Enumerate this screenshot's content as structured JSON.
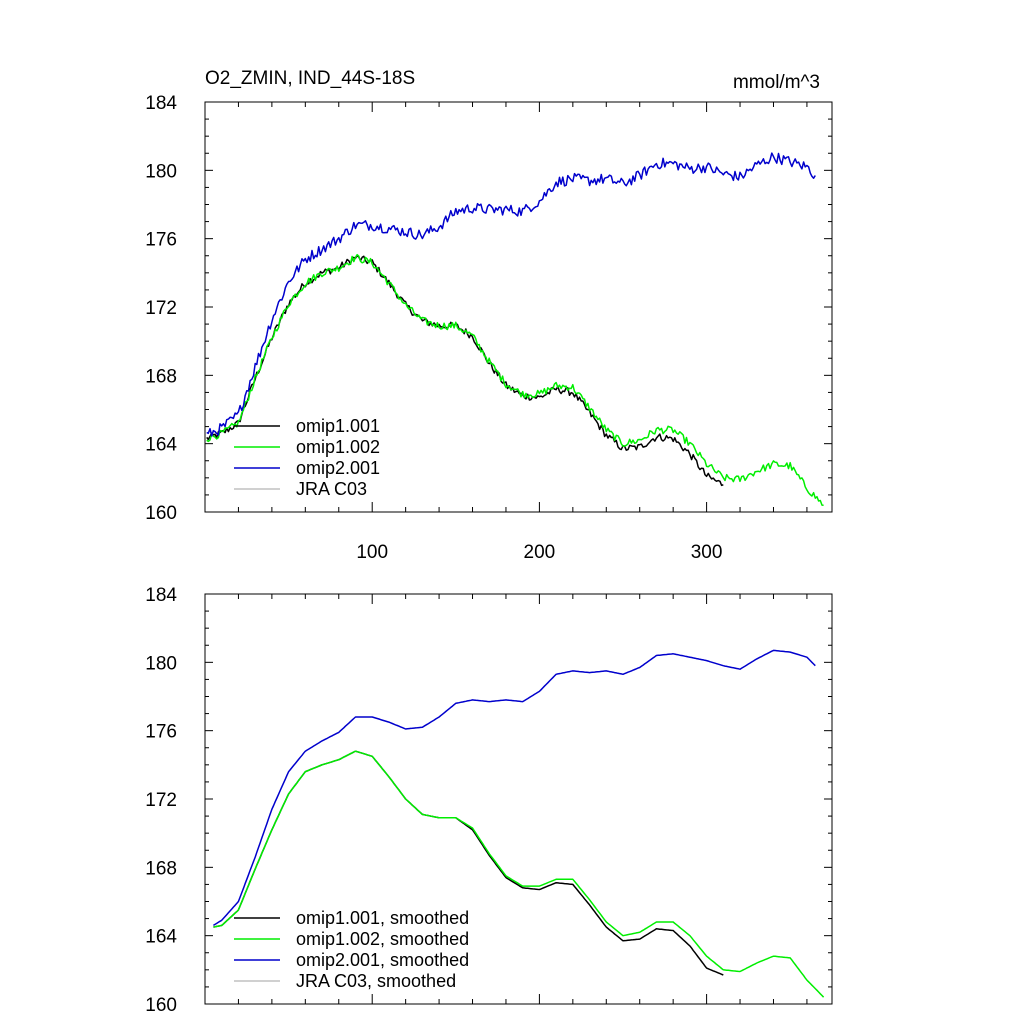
{
  "figure": {
    "title_left": "O2_ZMIN, IND_44S-18S",
    "title_right": "mmol/m^3"
  },
  "chart_data": [
    {
      "type": "line",
      "title": "O2_ZMIN, IND_44S-18S",
      "units": "mmol/m^3",
      "xlim": [
        0,
        375
      ],
      "ylim": [
        160,
        184
      ],
      "x_ticks": [
        100,
        200,
        300
      ],
      "y_ticks": [
        160,
        164,
        168,
        172,
        176,
        180,
        184
      ],
      "show_x_tick_labels": true,
      "grid": false,
      "legend_position": "bottom-left",
      "series": [
        {
          "name": "omip1.001",
          "color": "#000000",
          "noise": 0.22,
          "x": [
            1,
            10,
            20,
            30,
            40,
            50,
            60,
            70,
            80,
            90,
            100,
            110,
            120,
            130,
            140,
            150,
            160,
            170,
            180,
            190,
            200,
            210,
            220,
            230,
            240,
            250,
            260,
            270,
            280,
            290,
            300,
            310
          ],
          "y": [
            164.3,
            164.6,
            165.2,
            167.8,
            170.2,
            172.2,
            173.4,
            174.0,
            174.3,
            174.9,
            174.6,
            173.4,
            172.1,
            171.2,
            170.9,
            170.9,
            170.3,
            168.7,
            167.4,
            166.8,
            166.7,
            167.2,
            167.0,
            165.8,
            164.5,
            163.7,
            163.8,
            164.4,
            164.3,
            163.4,
            162.1,
            161.6
          ]
        },
        {
          "name": "omip1.002",
          "color": "#00ee00",
          "noise": 0.22,
          "x": [
            1,
            10,
            20,
            30,
            40,
            50,
            60,
            70,
            80,
            90,
            100,
            110,
            120,
            130,
            140,
            150,
            160,
            170,
            180,
            190,
            200,
            210,
            220,
            230,
            240,
            250,
            260,
            270,
            280,
            290,
            300,
            310,
            320,
            330,
            340,
            350,
            360,
            370
          ],
          "y": [
            164.3,
            164.6,
            165.2,
            167.8,
            170.2,
            172.2,
            173.4,
            174.0,
            174.3,
            174.9,
            174.6,
            173.4,
            172.1,
            171.2,
            170.9,
            170.9,
            170.3,
            168.8,
            167.5,
            166.9,
            166.9,
            167.4,
            167.3,
            166.1,
            164.8,
            164.0,
            164.2,
            164.8,
            164.8,
            164.0,
            162.8,
            162.0,
            161.9,
            162.4,
            162.8,
            162.7,
            161.4,
            160.4
          ]
        },
        {
          "name": "omip2.001",
          "color": "#0000cc",
          "noise": 0.32,
          "x": [
            1,
            10,
            20,
            30,
            40,
            50,
            60,
            70,
            80,
            90,
            100,
            110,
            120,
            130,
            140,
            150,
            160,
            170,
            180,
            190,
            200,
            210,
            220,
            230,
            240,
            250,
            260,
            270,
            280,
            290,
            300,
            310,
            320,
            330,
            340,
            350,
            360,
            365
          ],
          "y": [
            164.5,
            164.9,
            165.7,
            168.5,
            171.3,
            173.5,
            174.8,
            175.4,
            176.0,
            176.8,
            176.8,
            176.6,
            176.4,
            176.2,
            176.7,
            177.6,
            177.8,
            177.7,
            177.7,
            177.6,
            178.2,
            179.3,
            179.5,
            179.4,
            179.5,
            179.2,
            179.7,
            180.4,
            180.4,
            180.1,
            180.2,
            179.8,
            179.6,
            180.3,
            180.8,
            180.5,
            180.2,
            179.7
          ]
        },
        {
          "name": "JRA C03",
          "color": "#c0c0c0",
          "noise": 0,
          "x": [],
          "y": []
        }
      ]
    },
    {
      "type": "line",
      "xlim": [
        0,
        375
      ],
      "ylim": [
        160,
        184
      ],
      "x_ticks": [
        100,
        200,
        300
      ],
      "y_ticks": [
        160,
        164,
        168,
        172,
        176,
        180,
        184
      ],
      "show_x_tick_labels": false,
      "grid": false,
      "legend_position": "bottom-left",
      "series": [
        {
          "name": "omip1.001, smoothed",
          "color": "#000000",
          "noise": 0,
          "x": [
            5,
            10,
            20,
            30,
            40,
            50,
            60,
            70,
            80,
            90,
            100,
            110,
            120,
            130,
            140,
            150,
            160,
            170,
            180,
            190,
            200,
            210,
            220,
            230,
            240,
            250,
            260,
            270,
            280,
            290,
            300,
            310
          ],
          "y": [
            164.5,
            164.6,
            165.5,
            167.9,
            170.2,
            172.3,
            173.6,
            174.0,
            174.3,
            174.8,
            174.5,
            173.3,
            172.0,
            171.1,
            170.9,
            170.9,
            170.2,
            168.7,
            167.4,
            166.8,
            166.7,
            167.1,
            167.0,
            165.8,
            164.5,
            163.7,
            163.8,
            164.4,
            164.3,
            163.4,
            162.1,
            161.7
          ]
        },
        {
          "name": "omip1.002, smoothed",
          "color": "#00ee00",
          "noise": 0,
          "x": [
            5,
            10,
            20,
            30,
            40,
            50,
            60,
            70,
            80,
            90,
            100,
            110,
            120,
            130,
            140,
            150,
            160,
            170,
            180,
            190,
            200,
            210,
            220,
            230,
            240,
            250,
            260,
            270,
            280,
            290,
            300,
            310,
            320,
            330,
            340,
            350,
            360,
            370
          ],
          "y": [
            164.5,
            164.6,
            165.5,
            167.9,
            170.2,
            172.3,
            173.6,
            174.0,
            174.3,
            174.8,
            174.5,
            173.3,
            172.0,
            171.1,
            170.9,
            170.9,
            170.3,
            168.8,
            167.5,
            166.9,
            166.9,
            167.3,
            167.3,
            166.1,
            164.8,
            164.0,
            164.2,
            164.8,
            164.8,
            164.0,
            162.8,
            162.0,
            161.9,
            162.4,
            162.8,
            162.7,
            161.4,
            160.4
          ]
        },
        {
          "name": "omip2.001, smoothed",
          "color": "#0000cc",
          "noise": 0,
          "x": [
            5,
            10,
            20,
            30,
            40,
            50,
            60,
            70,
            80,
            90,
            100,
            110,
            120,
            130,
            140,
            150,
            160,
            170,
            180,
            190,
            200,
            210,
            220,
            230,
            240,
            250,
            260,
            270,
            280,
            290,
            300,
            310,
            320,
            330,
            340,
            350,
            360,
            365
          ],
          "y": [
            164.6,
            164.9,
            166.0,
            168.6,
            171.4,
            173.6,
            174.8,
            175.4,
            175.9,
            176.8,
            176.8,
            176.5,
            176.1,
            176.2,
            176.8,
            177.6,
            177.8,
            177.7,
            177.8,
            177.7,
            178.3,
            179.3,
            179.5,
            179.4,
            179.5,
            179.3,
            179.7,
            180.4,
            180.5,
            180.3,
            180.1,
            179.8,
            179.6,
            180.2,
            180.7,
            180.6,
            180.3,
            179.8
          ]
        },
        {
          "name": "JRA C03, smoothed",
          "color": "#c0c0c0",
          "noise": 0,
          "x": [],
          "y": []
        }
      ]
    }
  ]
}
